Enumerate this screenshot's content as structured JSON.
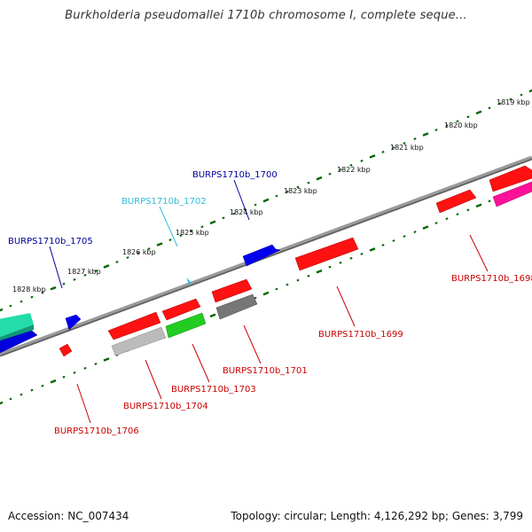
{
  "header": {
    "title": "Burkholderia pseudomallei 1710b chromosome I, complete seque..."
  },
  "footer": {
    "accession": "Accession: NC_007434",
    "summary": "Topology: circular; Length: 4,126,292 bp; Genes: 3,799"
  },
  "colors": {
    "backbone": "#7a7a7a",
    "tick": "#006600",
    "label_red": "#cc0000",
    "label_blue": "#000099",
    "label_cyan": "#33bbdd"
  },
  "scale_labels": [
    "1819 kbp",
    "1820 kbp",
    "1821 kbp",
    "1822 kbp",
    "1823 kbp",
    "1824 kbp",
    "1825 kbp",
    "1826 kbp",
    "1827 kbp",
    "1828 kbp"
  ],
  "gene_labels": [
    {
      "text": "BURPS1710b_1700",
      "color": "blue"
    },
    {
      "text": "BURPS1710b_1702",
      "color": "cyan"
    },
    {
      "text": "BURPS1710b_1705",
      "color": "blue"
    },
    {
      "text": "BURPS1710b_1698",
      "color": "red"
    },
    {
      "text": "BURPS1710b_1699",
      "color": "red"
    },
    {
      "text": "BURPS1710b_1701",
      "color": "red"
    },
    {
      "text": "BURPS1710b_1703",
      "color": "red"
    },
    {
      "text": "BURPS1710b_1704",
      "color": "red"
    },
    {
      "text": "BURPS1710b_1706",
      "color": "red"
    }
  ]
}
